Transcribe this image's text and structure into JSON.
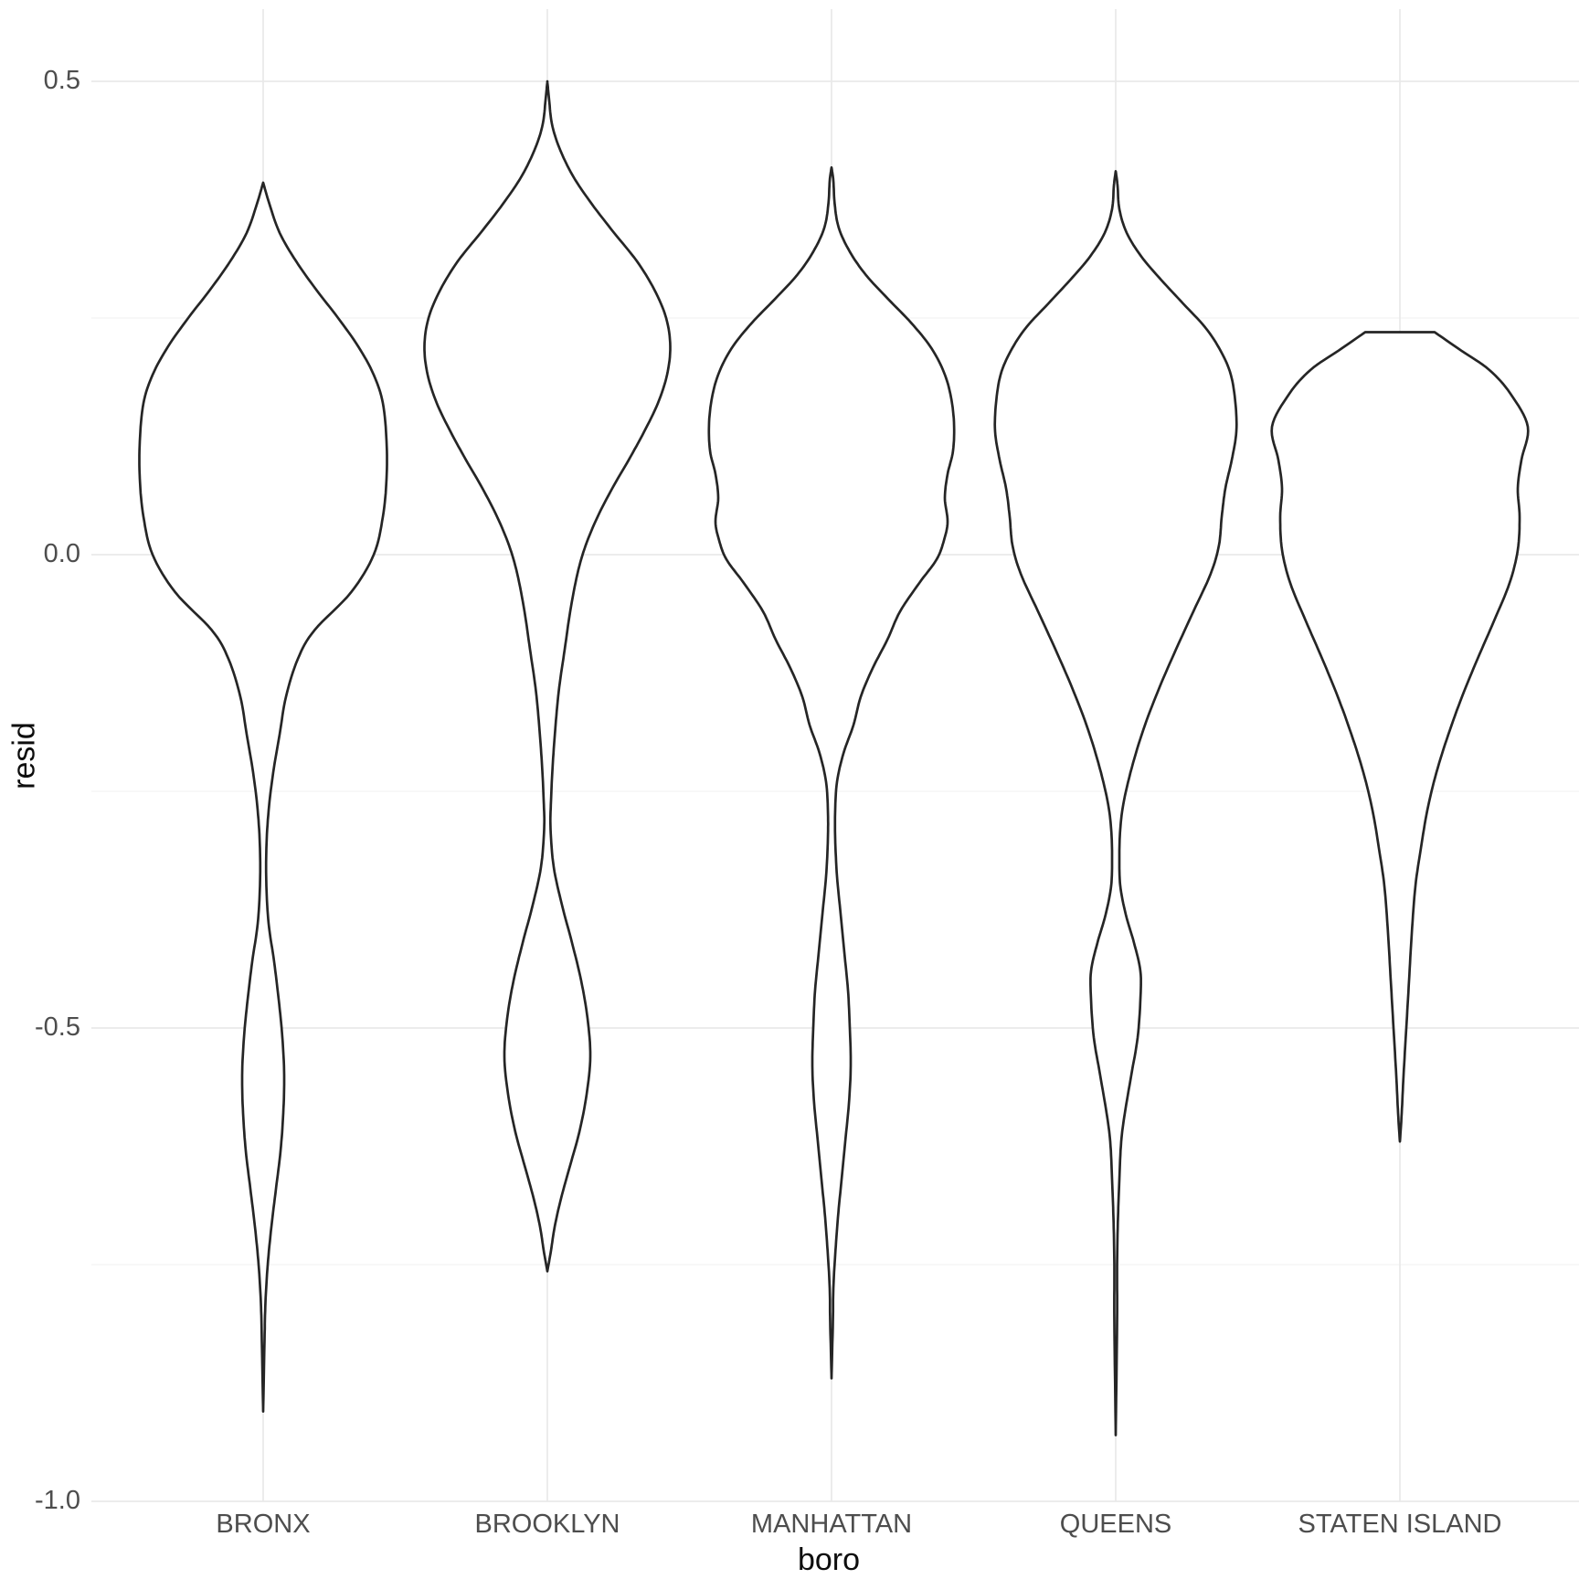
{
  "colors": {
    "background": "#ffffff",
    "violin_stroke": "#252525",
    "violin_fill": "#ffffff",
    "grid_major": "#e9e9e9",
    "grid_minor": "#f0f0f0",
    "tick_text": "#4d4d4d",
    "title_text": "#0d0d0d"
  },
  "chart_data": {
    "type": "violin",
    "title": "",
    "xlabel": "boro",
    "ylabel": "resid",
    "grid": "on",
    "legend": "none",
    "categories": [
      "BRONX",
      "BROOKLYN",
      "MANHATTAN",
      "QUEENS",
      "STATEN ISLAND"
    ],
    "y_axis": {
      "ticks": [
        {
          "label": "0.5",
          "value": 0.5
        },
        {
          "label": "0.0",
          "value": 0.0
        },
        {
          "label": "-0.5",
          "value": -0.5
        },
        {
          "label": "-1.0",
          "value": -1.0
        }
      ],
      "minor_gridline_values": [
        0.25,
        -0.25,
        -0.75
      ],
      "range": [
        -1.0,
        0.575
      ]
    },
    "violins": [
      {
        "category": "BRONX",
        "resid_min": -0.9,
        "resid_max": 0.39,
        "profile": [
          [
            0.393,
            0
          ],
          [
            0.37,
            7
          ],
          [
            0.34,
            18
          ],
          [
            0.31,
            36
          ],
          [
            0.28,
            58
          ],
          [
            0.25,
            82
          ],
          [
            0.22,
            104
          ],
          [
            0.19,
            121
          ],
          [
            0.16,
            131
          ],
          [
            0.12,
            135
          ],
          [
            0.08,
            135
          ],
          [
            0.04,
            131
          ],
          [
            0.0,
            121
          ],
          [
            -0.04,
            96
          ],
          [
            -0.08,
            56
          ],
          [
            -0.11,
            38
          ],
          [
            -0.15,
            25
          ],
          [
            -0.19,
            18
          ],
          [
            -0.23,
            11
          ],
          [
            -0.27,
            6
          ],
          [
            -0.31,
            3.5
          ],
          [
            -0.35,
            3.5
          ],
          [
            -0.39,
            6
          ],
          [
            -0.43,
            12
          ],
          [
            -0.47,
            17
          ],
          [
            -0.51,
            21
          ],
          [
            -0.55,
            23
          ],
          [
            -0.59,
            22
          ],
          [
            -0.63,
            19
          ],
          [
            -0.67,
            14
          ],
          [
            -0.71,
            9
          ],
          [
            -0.75,
            5
          ],
          [
            -0.79,
            2.5
          ],
          [
            -0.83,
            1.5
          ],
          [
            -0.905,
            0
          ]
        ]
      },
      {
        "category": "BROOKLYN",
        "resid_min": -0.76,
        "resid_max": 0.5,
        "profile": [
          [
            0.5,
            0
          ],
          [
            0.48,
            2
          ],
          [
            0.455,
            5
          ],
          [
            0.43,
            13
          ],
          [
            0.4,
            28
          ],
          [
            0.37,
            49
          ],
          [
            0.34,
            73
          ],
          [
            0.31,
            98
          ],
          [
            0.28,
            117
          ],
          [
            0.25,
            130
          ],
          [
            0.22,
            134.5
          ],
          [
            0.19,
            131
          ],
          [
            0.16,
            121
          ],
          [
            0.13,
            106
          ],
          [
            0.1,
            89
          ],
          [
            0.07,
            71
          ],
          [
            0.04,
            55
          ],
          [
            0.01,
            42
          ],
          [
            -0.02,
            33
          ],
          [
            -0.06,
            25
          ],
          [
            -0.1,
            19
          ],
          [
            -0.14,
            13
          ],
          [
            -0.18,
            9
          ],
          [
            -0.22,
            6
          ],
          [
            -0.26,
            4
          ],
          [
            -0.29,
            3.5
          ],
          [
            -0.33,
            7
          ],
          [
            -0.37,
            16
          ],
          [
            -0.41,
            27
          ],
          [
            -0.45,
            37
          ],
          [
            -0.49,
            44
          ],
          [
            -0.53,
            47
          ],
          [
            -0.57,
            43
          ],
          [
            -0.61,
            35
          ],
          [
            -0.645,
            25
          ],
          [
            -0.68,
            15
          ],
          [
            -0.71,
            8
          ],
          [
            -0.735,
            4
          ],
          [
            -0.757,
            0
          ]
        ]
      },
      {
        "category": "MANHATTAN",
        "resid_min": -0.87,
        "resid_max": 0.41,
        "profile": [
          [
            0.409,
            0
          ],
          [
            0.395,
            2
          ],
          [
            0.37,
            3.5
          ],
          [
            0.345,
            8
          ],
          [
            0.32,
            20
          ],
          [
            0.295,
            38
          ],
          [
            0.27,
            62
          ],
          [
            0.245,
            87
          ],
          [
            0.22,
            108
          ],
          [
            0.195,
            122
          ],
          [
            0.17,
            130
          ],
          [
            0.14,
            134
          ],
          [
            0.11,
            133
          ],
          [
            0.085,
            127
          ],
          [
            0.06,
            124
          ],
          [
            0.035,
            127
          ],
          [
            0.015,
            123
          ],
          [
            -0.005,
            115
          ],
          [
            -0.03,
            96
          ],
          [
            -0.06,
            75
          ],
          [
            -0.09,
            61
          ],
          [
            -0.12,
            45
          ],
          [
            -0.15,
            32
          ],
          [
            -0.18,
            24
          ],
          [
            -0.21,
            13
          ],
          [
            -0.24,
            6
          ],
          [
            -0.27,
            4
          ],
          [
            -0.3,
            4
          ],
          [
            -0.34,
            6
          ],
          [
            -0.38,
            10
          ],
          [
            -0.42,
            14
          ],
          [
            -0.46,
            18
          ],
          [
            -0.5,
            20
          ],
          [
            -0.54,
            21
          ],
          [
            -0.58,
            19
          ],
          [
            -0.62,
            15
          ],
          [
            -0.66,
            11
          ],
          [
            -0.7,
            7
          ],
          [
            -0.74,
            4
          ],
          [
            -0.775,
            2
          ],
          [
            -0.81,
            1.5
          ],
          [
            -0.87,
            0
          ]
        ]
      },
      {
        "category": "QUEENS",
        "resid_min": -0.93,
        "resid_max": 0.41,
        "profile": [
          [
            0.405,
            0
          ],
          [
            0.39,
            2
          ],
          [
            0.365,
            4
          ],
          [
            0.34,
            12
          ],
          [
            0.315,
            28
          ],
          [
            0.29,
            50
          ],
          [
            0.265,
            74
          ],
          [
            0.24,
            98
          ],
          [
            0.215,
            115
          ],
          [
            0.19,
            126
          ],
          [
            0.16,
            131
          ],
          [
            0.13,
            132
          ],
          [
            0.1,
            127
          ],
          [
            0.07,
            120
          ],
          [
            0.04,
            116
          ],
          [
            0.01,
            113
          ],
          [
            -0.02,
            104
          ],
          [
            -0.06,
            85
          ],
          [
            -0.1,
            66
          ],
          [
            -0.14,
            48
          ],
          [
            -0.18,
            32
          ],
          [
            -0.22,
            19
          ],
          [
            -0.26,
            9
          ],
          [
            -0.29,
            5
          ],
          [
            -0.32,
            4
          ],
          [
            -0.35,
            5
          ],
          [
            -0.38,
            11
          ],
          [
            -0.41,
            20
          ],
          [
            -0.44,
            27
          ],
          [
            -0.47,
            27
          ],
          [
            -0.51,
            24
          ],
          [
            -0.55,
            17
          ],
          [
            -0.59,
            10
          ],
          [
            -0.62,
            6
          ],
          [
            -0.66,
            4
          ],
          [
            -0.7,
            2.5
          ],
          [
            -0.75,
            1.5
          ],
          [
            -0.81,
            1.5
          ],
          [
            -0.93,
            0
          ]
        ]
      },
      {
        "category": "STATEN ISLAND",
        "resid_min": -0.62,
        "resid_max": 0.235,
        "profile": [
          [
            0.235,
            38
          ],
          [
            0.215,
            68
          ],
          [
            0.195,
            98
          ],
          [
            0.17,
            121
          ],
          [
            0.135,
            140
          ],
          [
            0.1,
            133
          ],
          [
            0.07,
            129
          ],
          [
            0.04,
            131
          ],
          [
            0.005,
            129
          ],
          [
            -0.03,
            120
          ],
          [
            -0.07,
            103
          ],
          [
            -0.11,
            85
          ],
          [
            -0.15,
            68
          ],
          [
            -0.19,
            53
          ],
          [
            -0.23,
            40
          ],
          [
            -0.27,
            30
          ],
          [
            -0.31,
            23
          ],
          [
            -0.35,
            17
          ],
          [
            -0.4,
            13
          ],
          [
            -0.45,
            10
          ],
          [
            -0.5,
            7
          ],
          [
            -0.55,
            4
          ],
          [
            -0.59,
            2
          ],
          [
            -0.62,
            0
          ]
        ]
      }
    ]
  }
}
